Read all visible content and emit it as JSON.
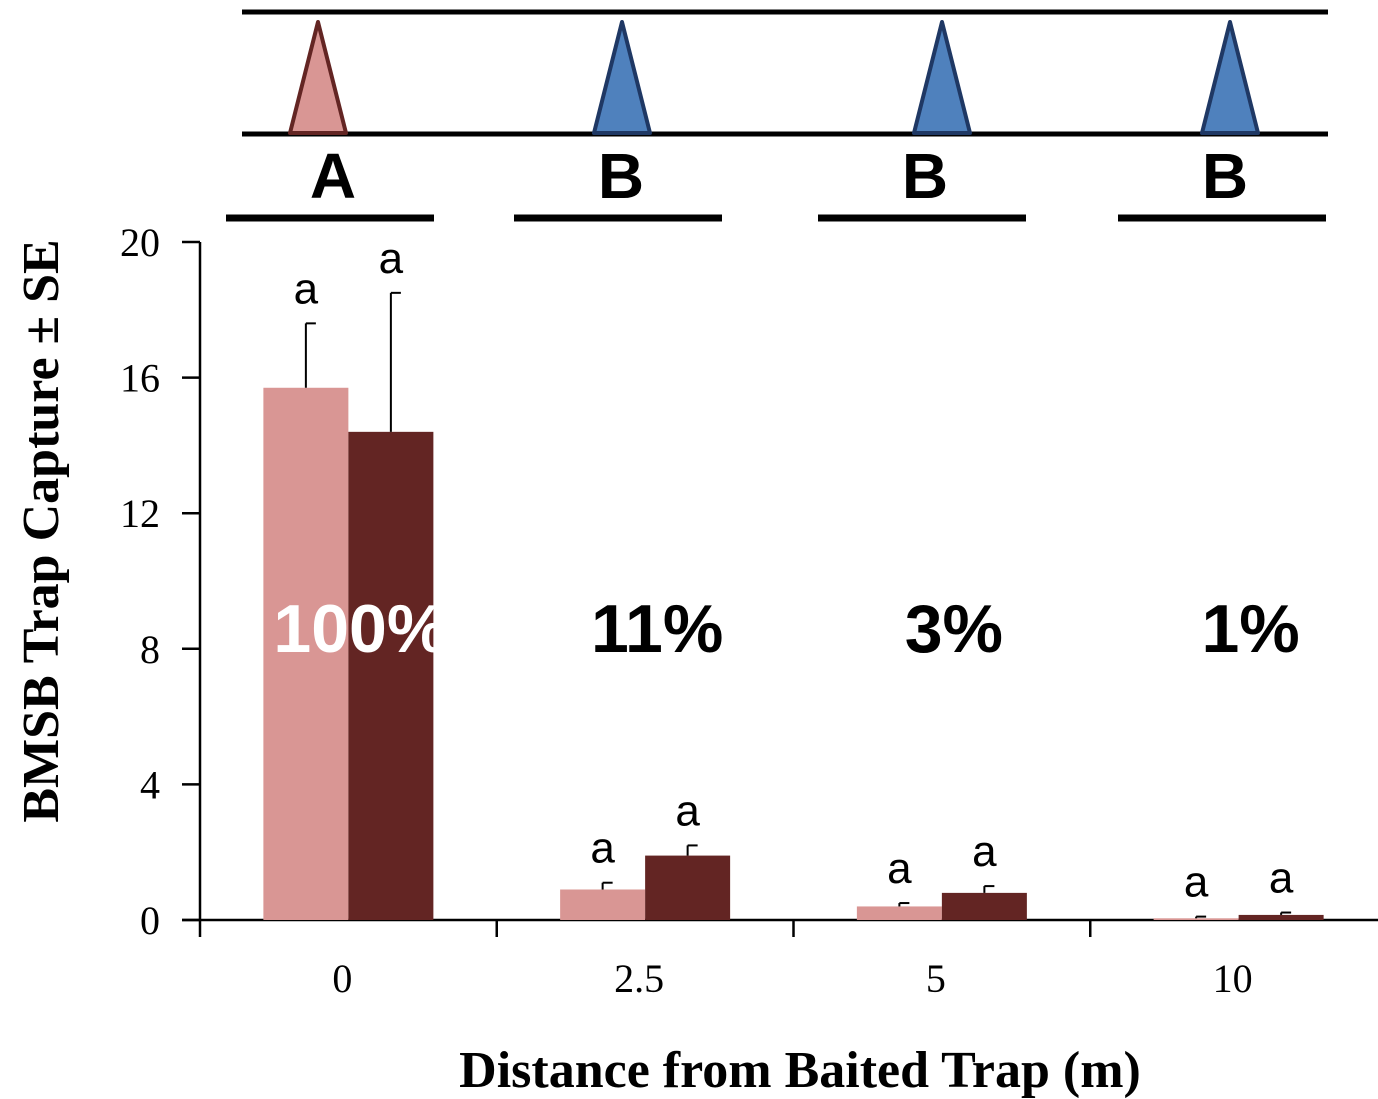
{
  "chart_data": {
    "type": "bar",
    "ylabel": "BMSB Trap Capture ± SE",
    "xlabel": "Distance from Baited Trap (m)",
    "categories": [
      "0",
      "2.5",
      "5",
      "10"
    ],
    "ylim": [
      0,
      20
    ],
    "yticks": [
      "0",
      "4",
      "8",
      "12",
      "16",
      "20"
    ],
    "grid": false,
    "legend": "none",
    "series": [
      {
        "color": "#D99694",
        "values": [
          15.7,
          0.9,
          0.4,
          0.05
        ],
        "error": [
          1.9,
          0.2,
          0.1,
          0.05
        ],
        "sig": [
          "a",
          "a",
          "a",
          "a"
        ]
      },
      {
        "color": "#632523",
        "values": [
          14.4,
          1.9,
          0.8,
          0.15
        ],
        "error": [
          4.1,
          0.3,
          0.2,
          0.07
        ],
        "sig": [
          "a",
          "a",
          "a",
          "a"
        ]
      }
    ],
    "percent_labels": [
      "100%",
      "11%",
      "3%",
      "1%"
    ],
    "group_letters": [
      "A",
      "B",
      "B",
      "B"
    ]
  },
  "trap_diagram": {
    "traps": [
      {
        "kind": "baited",
        "fill": "#D99694",
        "stroke": "#632523"
      },
      {
        "kind": "unbaited",
        "fill": "#4F81BD",
        "stroke": "#1F3864"
      },
      {
        "kind": "unbaited",
        "fill": "#4F81BD",
        "stroke": "#1F3864"
      },
      {
        "kind": "unbaited",
        "fill": "#4F81BD",
        "stroke": "#1F3864"
      }
    ]
  }
}
